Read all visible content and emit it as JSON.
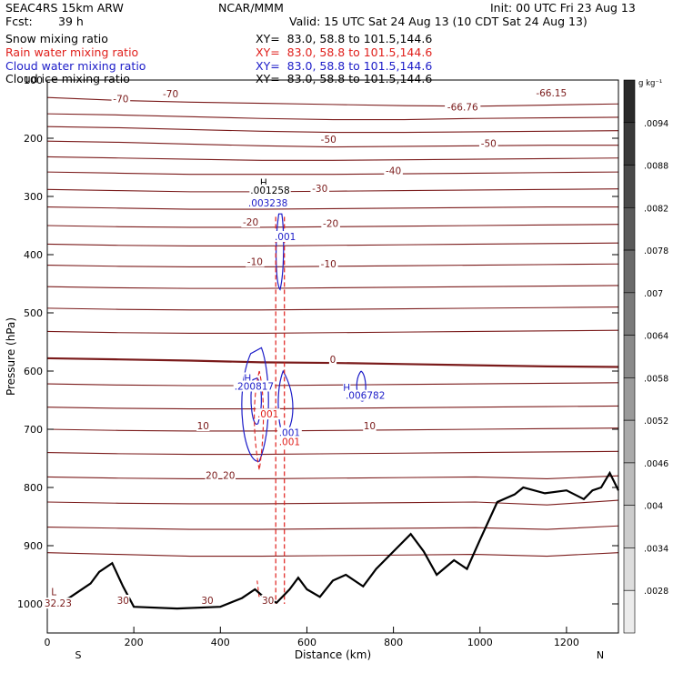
{
  "header": {
    "model": "SEAC4RS 15km ARW",
    "center": "NCAR/MMM",
    "init": "Init: 00 UTC Fri 23 Aug 13",
    "fcst_label": "Fcst:",
    "fcst_value": "39 h",
    "valid": "Valid: 15 UTC Sat 24 Aug 13 (10 CDT Sat 24 Aug 13)",
    "fields": [
      {
        "name": "Snow mixing ratio",
        "xy": "XY=  83.0, 58.8 to 101.5,144.6",
        "color": "#000000"
      },
      {
        "name": "Rain water mixing ratio",
        "xy": "XY=  83.0, 58.8 to 101.5,144.6",
        "color": "#e0201c"
      },
      {
        "name": "Cloud water mixing ratio",
        "xy": "XY=  83.0, 58.8 to 101.5,144.6",
        "color": "#1c1cc8"
      },
      {
        "name": "Cloud ice mixing ratio",
        "xy": "XY=  83.0, 58.8 to 101.5,144.6",
        "color": "#000000"
      }
    ]
  },
  "colors": {
    "isotherm": "#7a1a1a",
    "rain": "#e0201c",
    "cloud": "#1c1cc8",
    "terrain": "#000000"
  },
  "chart_data": {
    "type": "line",
    "xlabel": "Distance (km)",
    "ylabel": "Pressure (hPa)",
    "xlim": [
      0,
      1320
    ],
    "ylim": [
      1050,
      100
    ],
    "x_ticks": [
      0,
      200,
      400,
      600,
      800,
      1000,
      1200
    ],
    "y_ticks": [
      100,
      200,
      300,
      400,
      500,
      600,
      700,
      800,
      900,
      1000
    ],
    "endpoint_labels": {
      "left": "S",
      "right": "N"
    },
    "colorbar": {
      "unit": "g kg⁻¹",
      "labels": [
        ".0094",
        ".0088",
        ".0082",
        ".0078",
        ".007",
        ".0064",
        ".0058",
        ".0052",
        ".0046",
        ".004",
        ".0034",
        ".0028"
      ],
      "shades": [
        "#2a2a2a",
        "#3a3a3a",
        "#4a4a4a",
        "#5a5a5a",
        "#6a6a6a",
        "#7a7a7a",
        "#8a8a8a",
        "#9a9a9a",
        "#aaaaaa",
        "#bbbbbb",
        "#cccccc",
        "#dddddd",
        "#ececec"
      ]
    },
    "terrain": {
      "x": [
        0,
        50,
        100,
        120,
        150,
        175,
        200,
        300,
        400,
        450,
        480,
        500,
        530,
        560,
        580,
        600,
        630,
        660,
        690,
        730,
        760,
        800,
        840,
        870,
        900,
        940,
        970,
        1000,
        1040,
        1080,
        1100,
        1150,
        1200,
        1240,
        1260,
        1280,
        1300,
        1320
      ],
      "pressure": [
        1003,
        990,
        965,
        945,
        930,
        970,
        1005,
        1008,
        1005,
        990,
        975,
        988,
        998,
        975,
        955,
        975,
        988,
        960,
        950,
        970,
        940,
        910,
        880,
        910,
        950,
        925,
        940,
        890,
        825,
        812,
        800,
        810,
        805,
        820,
        805,
        800,
        775,
        805
      ]
    },
    "isotherms": [
      {
        "label": "-70",
        "p": [
          130,
          135,
          138,
          140,
          142,
          144,
          145,
          143,
          141
        ]
      },
      {
        "label": "-66.76",
        "p": [
          158,
          160,
          163,
          166,
          168,
          168,
          166,
          165,
          164
        ]
      },
      {
        "label": "",
        "p": [
          180,
          182,
          185,
          188,
          190,
          190,
          189,
          188,
          187
        ]
      },
      {
        "label": "-50",
        "p": [
          205,
          207,
          210,
          213,
          215,
          214,
          213,
          212,
          212
        ]
      },
      {
        "label": "",
        "p": [
          232,
          234,
          236,
          238,
          238,
          237,
          236,
          235,
          234
        ]
      },
      {
        "label": "-40",
        "p": [
          258,
          260,
          262,
          262,
          262,
          261,
          260,
          259,
          258
        ]
      },
      {
        "label": "-30",
        "p": [
          288,
          290,
          292,
          292,
          291,
          290,
          289,
          288,
          287
        ]
      },
      {
        "label": "",
        "p": [
          318,
          320,
          322,
          322,
          321,
          320,
          319,
          318,
          318
        ]
      },
      {
        "label": "-20",
        "p": [
          350,
          352,
          353,
          353,
          352,
          351,
          350,
          349,
          348
        ]
      },
      {
        "label": "",
        "p": [
          382,
          384,
          385,
          385,
          384,
          383,
          382,
          381,
          380
        ]
      },
      {
        "label": "-10",
        "p": [
          418,
          420,
          421,
          421,
          420,
          419,
          418,
          417,
          416
        ]
      },
      {
        "label": "",
        "p": [
          455,
          457,
          458,
          458,
          457,
          456,
          455,
          454,
          453
        ]
      },
      {
        "label": "",
        "p": [
          492,
          494,
          495,
          495,
          494,
          493,
          492,
          491,
          490
        ]
      },
      {
        "label": "",
        "p": [
          532,
          534,
          535,
          535,
          534,
          533,
          532,
          531,
          530
        ]
      },
      {
        "label": "0",
        "p": [
          578,
          580,
          582,
          585,
          586,
          588,
          590,
          592,
          593
        ]
      },
      {
        "label": "",
        "p": [
          622,
          624,
          625,
          625,
          624,
          623,
          622,
          621,
          620
        ]
      },
      {
        "label": "",
        "p": [
          662,
          664,
          665,
          665,
          664,
          663,
          662,
          661,
          660
        ]
      },
      {
        "label": "10",
        "p": [
          700,
          702,
          703,
          703,
          702,
          701,
          700,
          699,
          698
        ]
      },
      {
        "label": "",
        "p": [
          740,
          742,
          743,
          743,
          742,
          741,
          740,
          739,
          738
        ]
      },
      {
        "label": "20",
        "p": [
          782,
          784,
          785,
          785,
          784,
          783,
          782,
          785,
          780
        ]
      },
      {
        "label": "",
        "p": [
          825,
          827,
          828,
          828,
          827,
          826,
          825,
          830,
          822
        ]
      },
      {
        "label": "",
        "p": [
          868,
          870,
          872,
          872,
          871,
          870,
          869,
          872,
          866
        ]
      },
      {
        "label": "30",
        "p": [
          912,
          915,
          918,
          918,
          917,
          916,
          915,
          918,
          912
        ]
      }
    ],
    "isotherm_x": [
      0,
      165,
      330,
      495,
      660,
      825,
      990,
      1155,
      1320
    ],
    "labels": [
      {
        "text": "-70",
        "x": 170,
        "p": 138,
        "color": "isotherm"
      },
      {
        "text": "-70",
        "x": 285,
        "p": 130,
        "color": "isotherm"
      },
      {
        "text": "-66.76",
        "x": 960,
        "p": 152,
        "color": "isotherm"
      },
      {
        "text": "-66.15",
        "x": 1165,
        "p": 128,
        "color": "isotherm"
      },
      {
        "text": "-50",
        "x": 650,
        "p": 208,
        "color": "isotherm"
      },
      {
        "text": "-50",
        "x": 1020,
        "p": 215,
        "color": "isotherm"
      },
      {
        "text": "-40",
        "x": 800,
        "p": 262,
        "color": "isotherm"
      },
      {
        "text": "-30",
        "x": 630,
        "p": 292,
        "color": "isotherm"
      },
      {
        "text": "-20",
        "x": 470,
        "p": 350,
        "color": "isotherm"
      },
      {
        "text": "-20",
        "x": 655,
        "p": 352,
        "color": "isotherm"
      },
      {
        "text": "-10",
        "x": 480,
        "p": 418,
        "color": "isotherm"
      },
      {
        "text": "-10",
        "x": 650,
        "p": 422,
        "color": "isotherm"
      },
      {
        "text": "0",
        "x": 660,
        "p": 586,
        "color": "isotherm"
      },
      {
        "text": "10",
        "x": 360,
        "p": 700,
        "color": "isotherm"
      },
      {
        "text": "10",
        "x": 745,
        "p": 700,
        "color": "isotherm"
      },
      {
        "text": "20",
        "x": 380,
        "p": 785,
        "color": "isotherm"
      },
      {
        "text": "20",
        "x": 420,
        "p": 785,
        "color": "isotherm"
      },
      {
        "text": "30",
        "x": 175,
        "p": 1000,
        "color": "isotherm"
      },
      {
        "text": "30",
        "x": 370,
        "p": 1000,
        "color": "isotherm"
      },
      {
        "text": "30",
        "x": 510,
        "p": 1000,
        "color": "isotherm"
      },
      {
        "text": "L",
        "x": 15,
        "p": 985,
        "color": "isotherm"
      },
      {
        "text": "32.23",
        "x": 25,
        "p": 1005,
        "color": "isotherm"
      },
      {
        "text": "H",
        "x": 500,
        "p": 282,
        "color": "terrain"
      },
      {
        "text": ".001258",
        "x": 515,
        "p": 295,
        "color": "terrain"
      },
      {
        "text": ".003238",
        "x": 510,
        "p": 317,
        "color": "cloud"
      },
      {
        "text": ".001",
        "x": 550,
        "p": 375,
        "color": "cloud"
      },
      {
        "text": "H",
        "x": 463,
        "p": 618,
        "color": "cloud"
      },
      {
        "text": ".200817",
        "x": 478,
        "p": 632,
        "color": "cloud"
      },
      {
        "text": ".001",
        "x": 510,
        "p": 680,
        "color": "rain"
      },
      {
        "text": ".001",
        "x": 560,
        "p": 712,
        "color": "cloud"
      },
      {
        "text": ".001",
        "x": 560,
        "p": 727,
        "color": "rain"
      },
      {
        "text": "H",
        "x": 692,
        "p": 634,
        "color": "cloud"
      },
      {
        "text": ".006782",
        "x": 735,
        "p": 648,
        "color": "cloud"
      }
    ]
  }
}
